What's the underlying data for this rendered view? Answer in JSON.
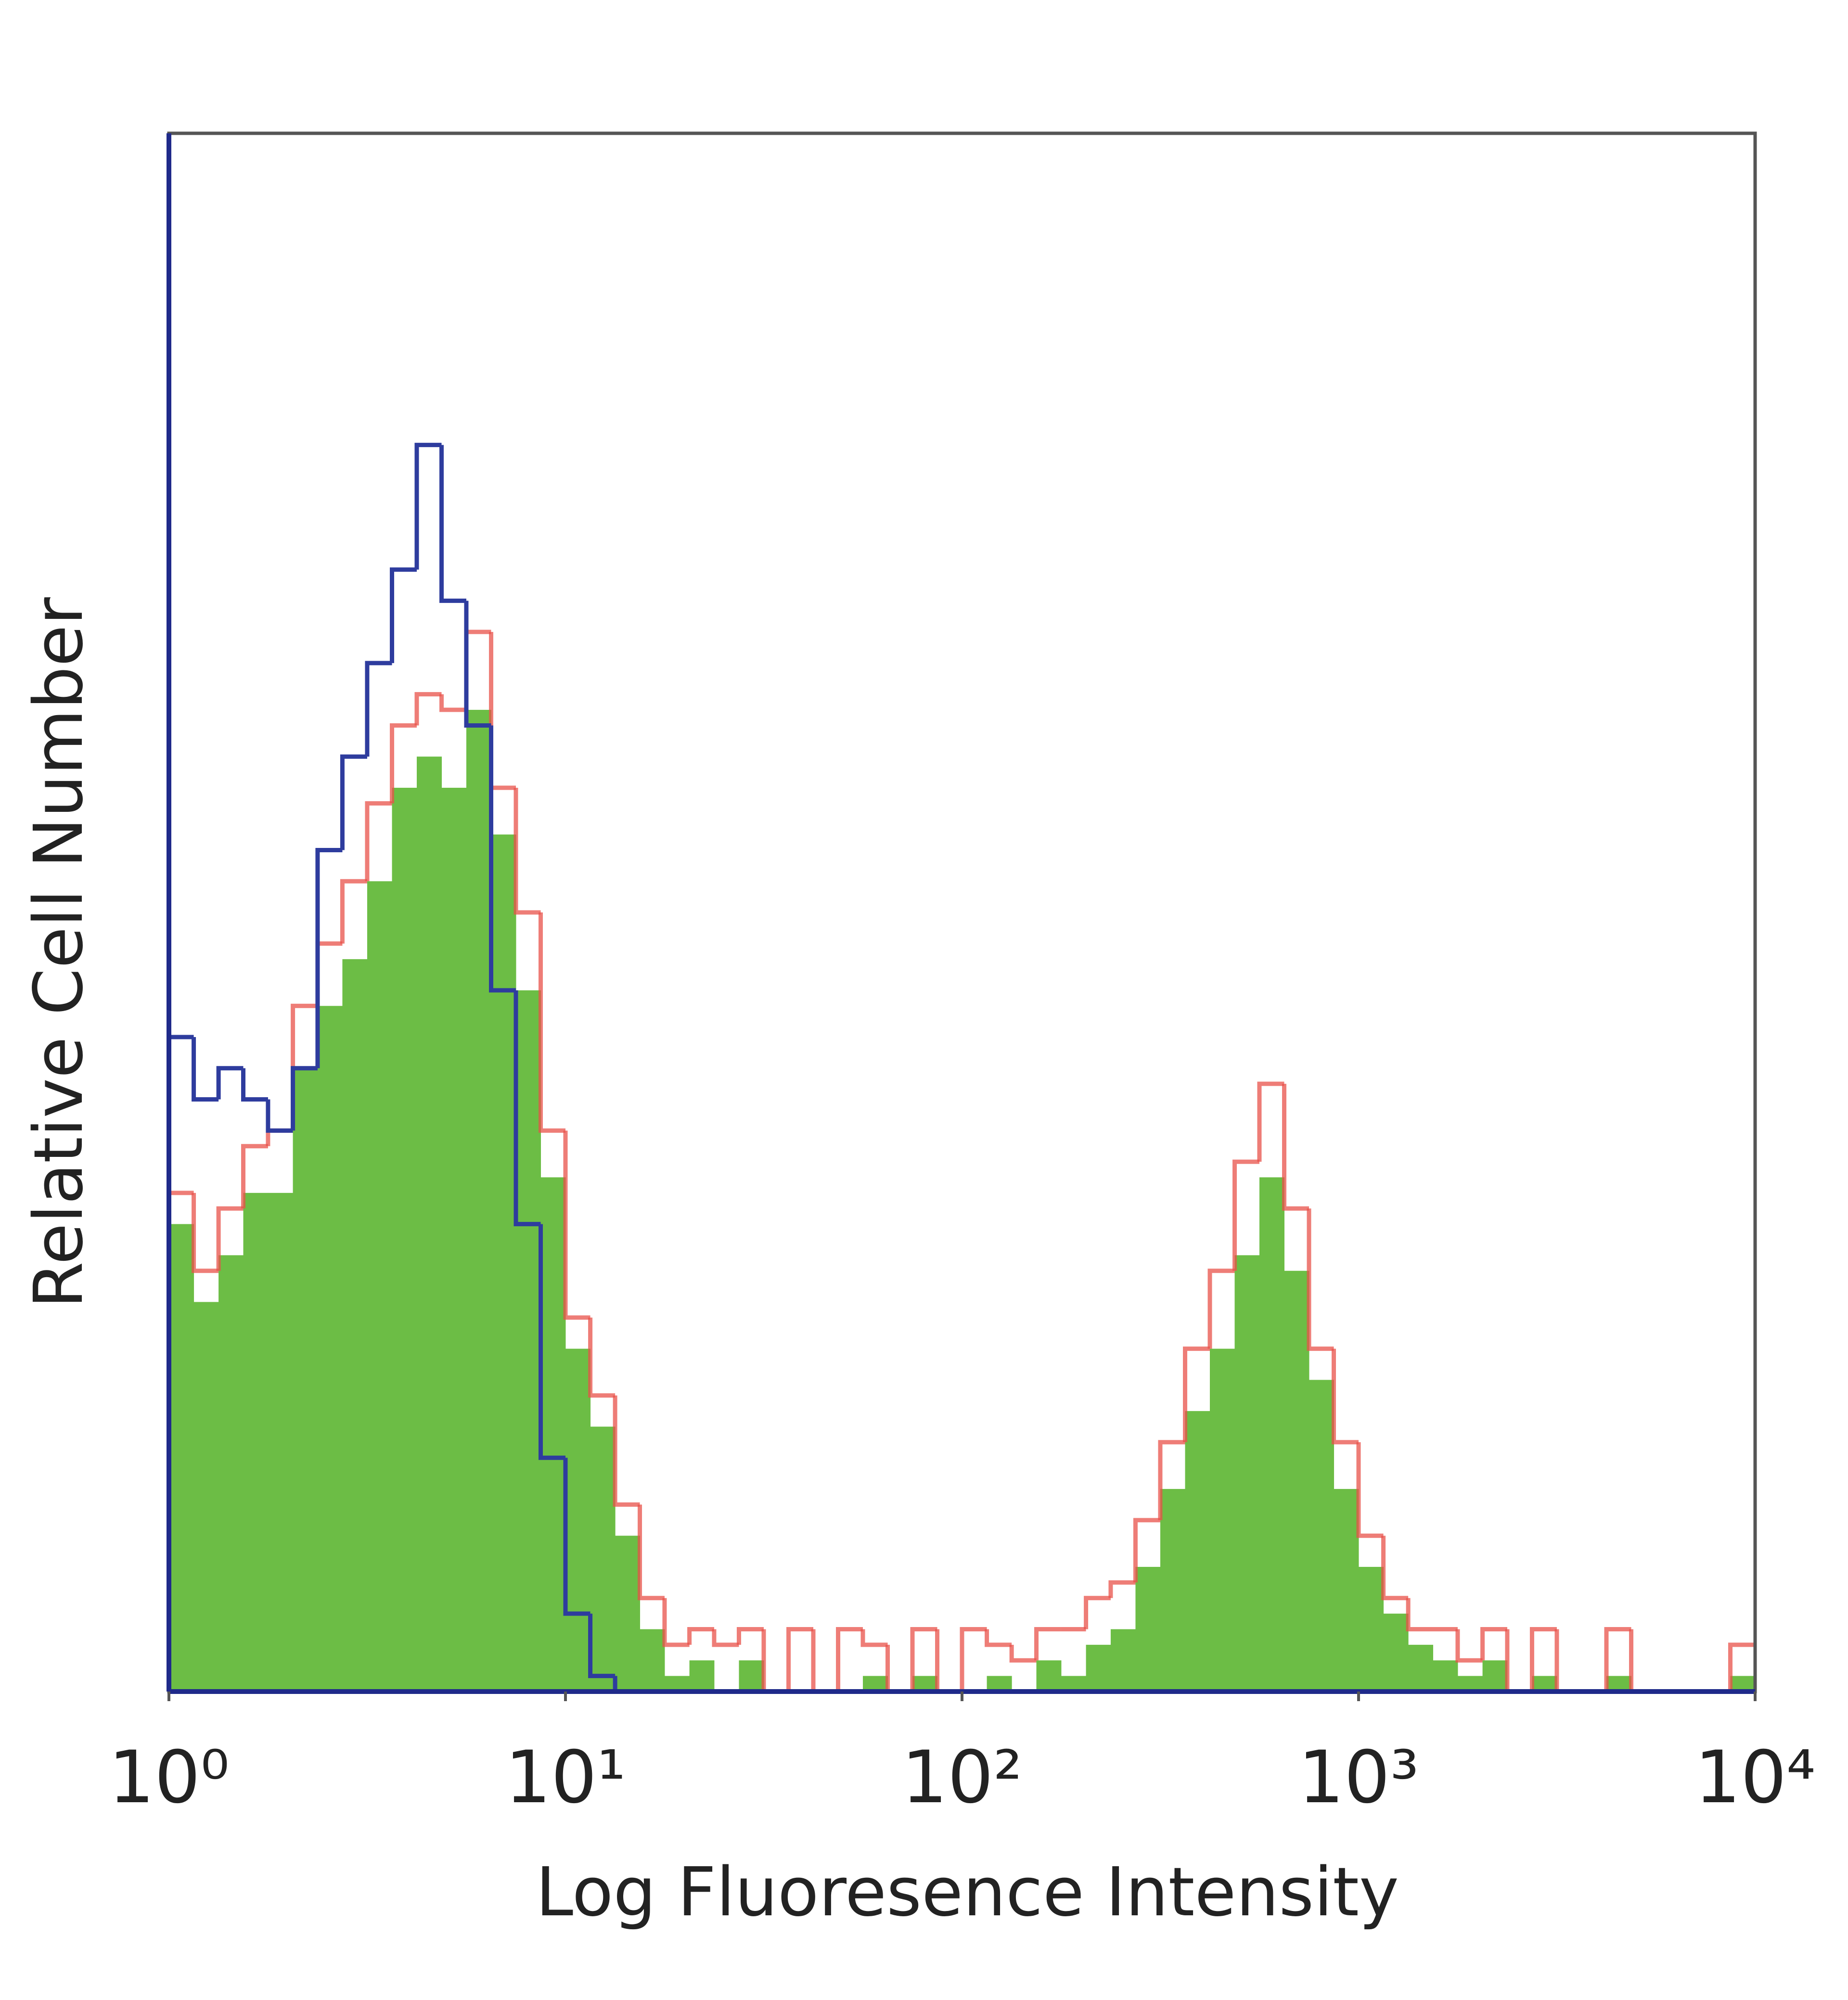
{
  "chart_data": {
    "type": "histogram",
    "xlabel": "Log Fluoresence Intensity",
    "ylabel": "Relative Cell Number",
    "xscale": "log",
    "xlim": [
      1,
      10000
    ],
    "ylim": [
      0,
      100
    ],
    "xticks": [
      {
        "value": 1,
        "label": "10⁰"
      },
      {
        "value": 10,
        "label": "10¹"
      },
      {
        "value": 100,
        "label": "10²"
      },
      {
        "value": 1000,
        "label": "10³"
      },
      {
        "value": 10000,
        "label": "10⁴"
      }
    ],
    "bins": [
      1,
      1.155,
      1.334,
      1.54,
      1.778,
      2.054,
      2.371,
      2.738,
      3.162,
      3.652,
      4.217,
      4.87,
      5.623,
      6.494,
      7.499,
      8.66,
      10,
      11.55,
      13.34,
      15.4,
      17.78,
      20.54,
      23.71,
      27.38,
      31.62,
      36.52,
      42.17,
      48.7,
      56.23,
      64.94,
      74.99,
      86.6,
      100,
      115.5,
      133.4,
      154,
      177.8,
      205.4,
      237.1,
      273.8,
      316.2,
      365.2,
      421.7,
      487,
      562.3,
      649.4,
      749.9,
      866,
      1000,
      1155,
      1334,
      1540,
      1778,
      2054,
      2371,
      2738,
      3162,
      3652,
      4217,
      4870,
      5623,
      6494,
      7499,
      8660,
      10000
    ],
    "series": [
      {
        "color": "#6cbd45",
        "fill": true,
        "values": [
          30,
          25,
          28,
          32,
          32,
          40,
          44,
          47,
          52,
          58,
          60,
          58,
          63,
          55,
          45,
          33,
          22,
          17,
          10,
          4,
          1,
          2,
          0,
          2,
          0,
          0,
          0,
          0,
          1,
          0,
          1,
          0,
          0,
          1,
          0,
          2,
          1,
          3,
          4,
          8,
          13,
          18,
          22,
          28,
          33,
          27,
          20,
          13,
          8,
          5,
          3,
          2,
          1,
          2,
          0,
          1,
          0,
          0,
          1,
          0,
          0,
          0,
          0,
          1
        ]
      },
      {
        "color": "#e8524a",
        "fill": false,
        "values": [
          32,
          27,
          31,
          35,
          36,
          44,
          48,
          52,
          57,
          62,
          64,
          63,
          68,
          58,
          50,
          36,
          24,
          19,
          12,
          6,
          3,
          4,
          3,
          4,
          0,
          4,
          0,
          4,
          3,
          0,
          4,
          0,
          4,
          3,
          2,
          4,
          4,
          6,
          7,
          11,
          16,
          22,
          27,
          34,
          39,
          31,
          22,
          16,
          10,
          6,
          4,
          4,
          2,
          4,
          0,
          4,
          0,
          0,
          4,
          0,
          0,
          0,
          0,
          3
        ]
      },
      {
        "color": "#2e3c9e",
        "fill": false,
        "values": [
          42,
          38,
          40,
          38,
          36,
          40,
          54,
          60,
          66,
          72,
          80,
          70,
          62,
          45,
          30,
          15,
          5,
          1,
          0,
          0,
          0,
          0,
          0,
          0,
          0,
          0,
          0,
          0,
          0,
          0,
          0,
          0,
          0,
          0,
          0,
          0,
          0,
          0,
          0,
          0,
          0,
          0,
          0,
          0,
          0,
          0,
          0,
          0,
          0,
          0,
          0,
          0,
          0,
          0,
          0,
          0,
          0,
          0,
          0,
          0,
          0,
          0,
          0,
          0
        ]
      }
    ]
  }
}
